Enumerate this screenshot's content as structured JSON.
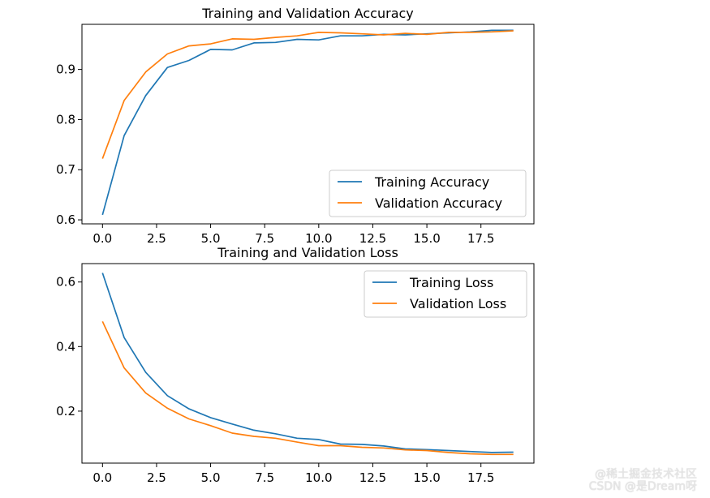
{
  "chart_data": [
    {
      "type": "line",
      "title": "Training and Validation Accuracy",
      "xlabel": "",
      "ylabel": "",
      "xlim": [
        -0.95,
        19.95
      ],
      "ylim": [
        0.592,
        0.99
      ],
      "xticks": [
        0.0,
        2.5,
        5.0,
        7.5,
        10.0,
        12.5,
        15.0,
        17.5
      ],
      "xtick_labels": [
        "0.0",
        "2.5",
        "5.0",
        "7.5",
        "10.0",
        "12.5",
        "15.0",
        "17.5"
      ],
      "yticks": [
        0.6,
        0.7,
        0.8,
        0.9
      ],
      "ytick_labels": [
        "0.6",
        "0.7",
        "0.8",
        "0.9"
      ],
      "legend_position": "lower-right",
      "x": [
        0,
        1,
        2,
        3,
        4,
        5,
        6,
        7,
        8,
        9,
        10,
        11,
        12,
        13,
        14,
        15,
        16,
        17,
        18,
        19
      ],
      "series": [
        {
          "name": "Training Accuracy",
          "color": "#1f77b4",
          "values": [
            0.61,
            0.768,
            0.848,
            0.904,
            0.918,
            0.94,
            0.939,
            0.953,
            0.954,
            0.96,
            0.959,
            0.967,
            0.967,
            0.97,
            0.969,
            0.971,
            0.973,
            0.975,
            0.978,
            0.978
          ]
        },
        {
          "name": "Validation Accuracy",
          "color": "#ff7f0e",
          "values": [
            0.722,
            0.838,
            0.895,
            0.931,
            0.947,
            0.951,
            0.961,
            0.96,
            0.964,
            0.967,
            0.974,
            0.973,
            0.971,
            0.969,
            0.972,
            0.97,
            0.974,
            0.974,
            0.975,
            0.977
          ]
        }
      ]
    },
    {
      "type": "line",
      "title": "Training and Validation Loss",
      "xlabel": "",
      "ylabel": "",
      "xlim": [
        -0.95,
        19.95
      ],
      "ylim": [
        0.039,
        0.657
      ],
      "xticks": [
        0.0,
        2.5,
        5.0,
        7.5,
        10.0,
        12.5,
        15.0,
        17.5
      ],
      "xtick_labels": [
        "0.0",
        "2.5",
        "5.0",
        "7.5",
        "10.0",
        "12.5",
        "15.0",
        "17.5"
      ],
      "yticks": [
        0.2,
        0.4,
        0.6
      ],
      "ytick_labels": [
        "0.2",
        "0.4",
        "0.6"
      ],
      "legend_position": "upper-right",
      "x": [
        0,
        1,
        2,
        3,
        4,
        5,
        6,
        7,
        8,
        9,
        10,
        11,
        12,
        13,
        14,
        15,
        16,
        17,
        18,
        19
      ],
      "series": [
        {
          "name": "Training Loss",
          "color": "#1f77b4",
          "values": [
            0.628,
            0.428,
            0.32,
            0.248,
            0.207,
            0.18,
            0.16,
            0.141,
            0.13,
            0.116,
            0.112,
            0.098,
            0.097,
            0.092,
            0.083,
            0.081,
            0.078,
            0.075,
            0.072,
            0.073
          ]
        },
        {
          "name": "Validation Loss",
          "color": "#ff7f0e",
          "values": [
            0.478,
            0.334,
            0.256,
            0.209,
            0.176,
            0.155,
            0.132,
            0.122,
            0.116,
            0.104,
            0.093,
            0.093,
            0.088,
            0.086,
            0.08,
            0.078,
            0.072,
            0.068,
            0.066,
            0.066
          ]
        }
      ]
    }
  ],
  "watermark": {
    "line1": "@稀土掘金技术社区",
    "line2": "CSDN @是Dream呀"
  }
}
